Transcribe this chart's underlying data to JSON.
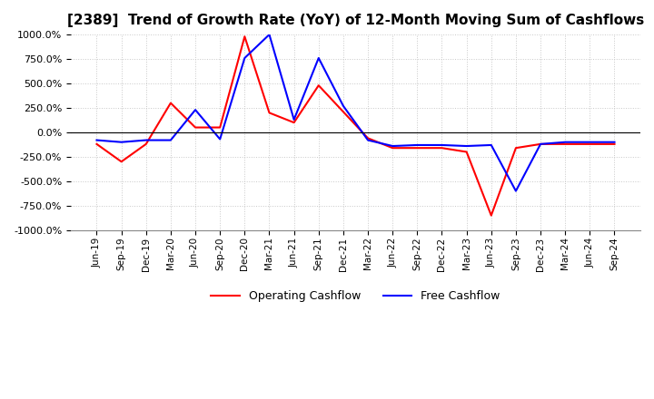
{
  "title": "[2389]  Trend of Growth Rate (YoY) of 12-Month Moving Sum of Cashflows",
  "title_fontsize": 11,
  "ylim": [
    -1000,
    1000
  ],
  "yticks": [
    1000,
    750,
    500,
    250,
    0,
    -250,
    -500,
    -750,
    -1000
  ],
  "background_color": "#ffffff",
  "grid_color": "#c8c8c8",
  "operating_color": "#ff0000",
  "free_color": "#0000ff",
  "x_labels": [
    "Jun-19",
    "Sep-19",
    "Dec-19",
    "Mar-20",
    "Jun-20",
    "Sep-20",
    "Dec-20",
    "Mar-21",
    "Jun-21",
    "Sep-21",
    "Dec-21",
    "Mar-22",
    "Jun-22",
    "Sep-22",
    "Dec-22",
    "Mar-23",
    "Jun-23",
    "Sep-23",
    "Dec-23",
    "Mar-24",
    "Jun-24",
    "Sep-24"
  ],
  "operating_cashflow": [
    -120,
    -300,
    -120,
    300,
    50,
    50,
    980,
    200,
    100,
    480,
    210,
    -60,
    -160,
    -160,
    -160,
    -200,
    -850,
    -160,
    -120,
    -120,
    -120,
    -120
  ],
  "free_cashflow": [
    -80,
    -100,
    -80,
    -80,
    230,
    -70,
    760,
    1000,
    130,
    760,
    270,
    -80,
    -140,
    -130,
    -130,
    -140,
    -130,
    -600,
    -120,
    -100,
    -100,
    -100
  ]
}
